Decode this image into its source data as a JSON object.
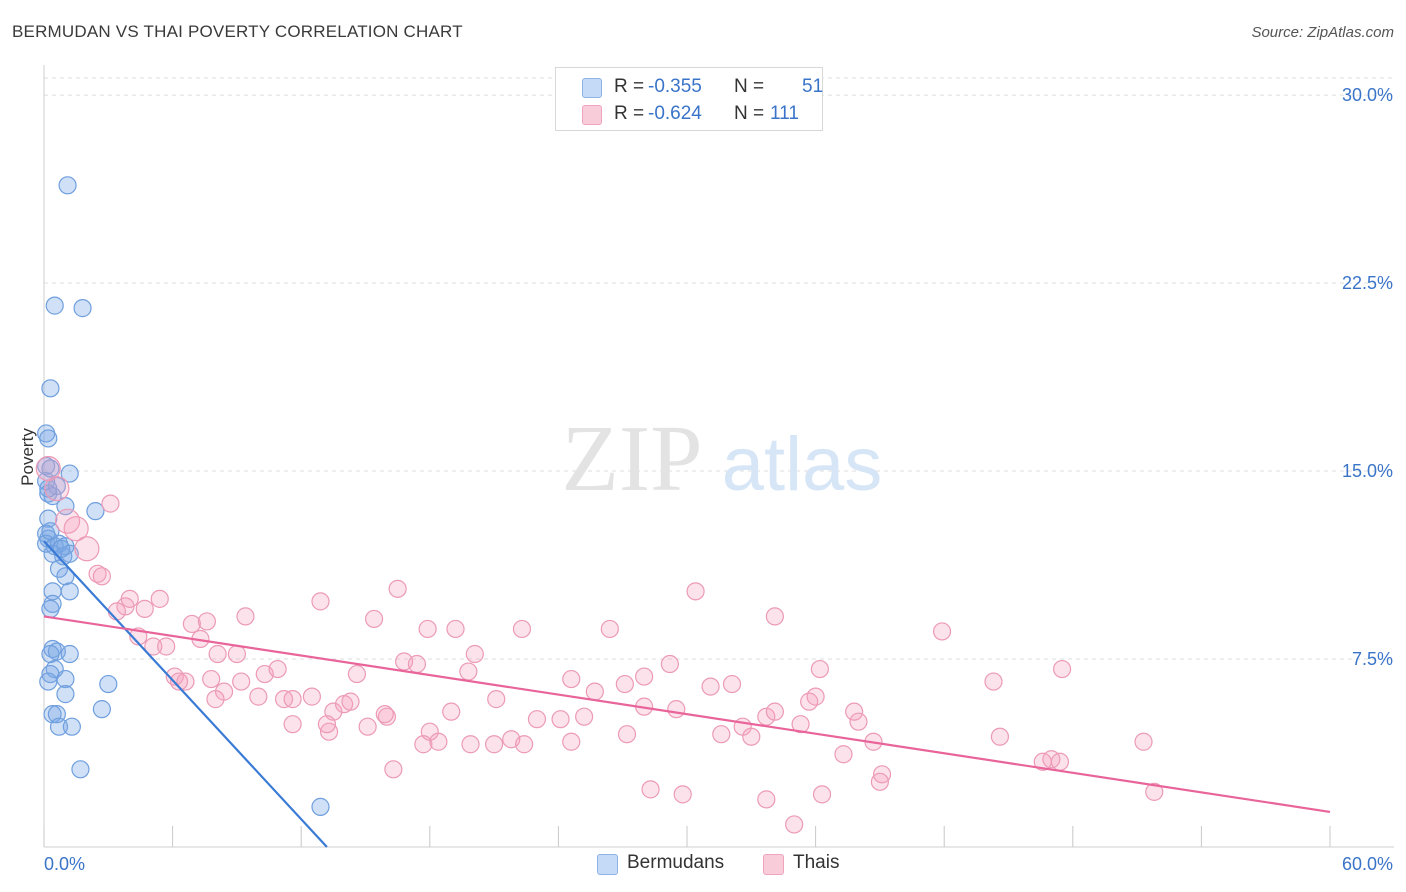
{
  "header": {
    "title": "BERMUDAN VS THAI POVERTY CORRELATION CHART",
    "source": "Source: ZipAtlas.com"
  },
  "watermark": {
    "zip": "ZIP",
    "atlas": "atlas"
  },
  "legend": {
    "items": [
      {
        "r_label": "R =",
        "r_value": "-0.355",
        "n_label": "N =",
        "n_value": "51",
        "color": "#aac8f0"
      },
      {
        "r_label": "R =",
        "r_value": "-0.624",
        "n_label": "N =",
        "n_value": "111",
        "color": "#f6b8cc"
      }
    ]
  },
  "bottom_legend": {
    "series1": "Bermudans",
    "series2": "Thais"
  },
  "chart_data": {
    "type": "scatter",
    "title": "BERMUDAN VS THAI POVERTY CORRELATION CHART",
    "xlabel": "",
    "ylabel": "Poverty",
    "xlim": [
      0,
      60
    ],
    "ylim": [
      0,
      31.2
    ],
    "x_tick_labels": [
      "0.0%",
      "60.0%"
    ],
    "y_ticks": [
      7.5,
      15,
      22.5,
      30
    ],
    "y_tick_labels": [
      "7.5%",
      "15.0%",
      "22.5%",
      "30.0%"
    ],
    "grid": "horizontal dashed",
    "legend_position": "top-center",
    "colors": {
      "bermudans": "#3a7bd5",
      "thais": "#e8649a"
    },
    "series": [
      {
        "name": "Bermudans",
        "color": "#3a7bd5",
        "trendline": {
          "x": [
            0,
            13.2
          ],
          "y": [
            12.2,
            0
          ]
        },
        "points": [
          [
            1.1,
            26.4
          ],
          [
            0.5,
            21.6
          ],
          [
            1.8,
            21.5
          ],
          [
            0.3,
            18.3
          ],
          [
            0.1,
            16.5
          ],
          [
            0.2,
            16.3
          ],
          [
            0.1,
            15.2
          ],
          [
            0.3,
            15.1
          ],
          [
            1.2,
            14.9
          ],
          [
            0.1,
            14.6
          ],
          [
            0.6,
            14.4
          ],
          [
            0.2,
            14.1
          ],
          [
            0.4,
            14.0
          ],
          [
            1.0,
            13.6
          ],
          [
            2.4,
            13.4
          ],
          [
            0.2,
            13.1
          ],
          [
            0.1,
            12.5
          ],
          [
            0.2,
            12.3
          ],
          [
            0.1,
            12.1
          ],
          [
            0.5,
            12.0
          ],
          [
            0.7,
            12.1
          ],
          [
            1.0,
            12.0
          ],
          [
            0.4,
            11.7
          ],
          [
            0.9,
            11.6
          ],
          [
            1.2,
            11.7
          ],
          [
            0.7,
            11.1
          ],
          [
            1.0,
            10.8
          ],
          [
            0.4,
            10.2
          ],
          [
            1.2,
            10.2
          ],
          [
            0.4,
            9.7
          ],
          [
            0.3,
            9.5
          ],
          [
            0.4,
            7.9
          ],
          [
            0.6,
            7.8
          ],
          [
            1.2,
            7.7
          ],
          [
            0.3,
            7.7
          ],
          [
            0.5,
            7.1
          ],
          [
            0.3,
            6.9
          ],
          [
            1.0,
            6.7
          ],
          [
            0.2,
            6.6
          ],
          [
            1.0,
            6.1
          ],
          [
            3.0,
            6.5
          ],
          [
            0.4,
            5.3
          ],
          [
            0.6,
            5.3
          ],
          [
            2.7,
            5.5
          ],
          [
            0.7,
            4.8
          ],
          [
            1.3,
            4.8
          ],
          [
            1.7,
            3.1
          ],
          [
            12.9,
            1.6
          ],
          [
            0.3,
            12.6
          ],
          [
            0.8,
            11.9
          ],
          [
            0.2,
            14.3
          ]
        ]
      },
      {
        "name": "Thais",
        "color": "#e8649a",
        "trendline": {
          "x": [
            0,
            60
          ],
          "y": [
            9.2,
            1.4
          ]
        },
        "points": [
          [
            0.2,
            15.1
          ],
          [
            0.6,
            14.3
          ],
          [
            1.1,
            13.0
          ],
          [
            1.5,
            12.7
          ],
          [
            2.0,
            11.9
          ],
          [
            3.1,
            13.7
          ],
          [
            2.5,
            10.9
          ],
          [
            2.7,
            10.8
          ],
          [
            3.8,
            9.6
          ],
          [
            4.0,
            9.9
          ],
          [
            3.4,
            9.4
          ],
          [
            4.7,
            9.5
          ],
          [
            5.4,
            9.9
          ],
          [
            6.9,
            8.9
          ],
          [
            7.6,
            9.0
          ],
          [
            9.4,
            9.2
          ],
          [
            12.9,
            9.8
          ],
          [
            15.4,
            9.1
          ],
          [
            16.5,
            10.3
          ],
          [
            17.9,
            8.7
          ],
          [
            19.2,
            8.7
          ],
          [
            22.3,
            8.7
          ],
          [
            26.4,
            8.7
          ],
          [
            30.4,
            10.2
          ],
          [
            34.1,
            9.2
          ],
          [
            41.9,
            8.6
          ],
          [
            4.4,
            8.4
          ],
          [
            5.1,
            8.0
          ],
          [
            5.7,
            8.0
          ],
          [
            7.3,
            8.3
          ],
          [
            8.1,
            7.7
          ],
          [
            9.0,
            7.7
          ],
          [
            6.1,
            6.8
          ],
          [
            6.6,
            6.6
          ],
          [
            7.8,
            6.7
          ],
          [
            9.2,
            6.6
          ],
          [
            10.3,
            6.9
          ],
          [
            10.9,
            7.1
          ],
          [
            14.6,
            6.9
          ],
          [
            16.8,
            7.4
          ],
          [
            17.4,
            7.3
          ],
          [
            19.8,
            7.0
          ],
          [
            20.1,
            7.7
          ],
          [
            24.6,
            6.7
          ],
          [
            27.1,
            6.5
          ],
          [
            28.0,
            6.8
          ],
          [
            29.2,
            7.3
          ],
          [
            31.1,
            6.4
          ],
          [
            36.2,
            7.1
          ],
          [
            44.3,
            6.6
          ],
          [
            47.5,
            7.1
          ],
          [
            8.4,
            6.2
          ],
          [
            10.0,
            6.0
          ],
          [
            11.2,
            5.9
          ],
          [
            11.6,
            5.9
          ],
          [
            12.5,
            6.0
          ],
          [
            13.5,
            5.4
          ],
          [
            14.0,
            5.7
          ],
          [
            14.3,
            5.8
          ],
          [
            16.0,
            5.2
          ],
          [
            19.0,
            5.4
          ],
          [
            21.1,
            5.9
          ],
          [
            25.7,
            6.2
          ],
          [
            28.0,
            5.6
          ],
          [
            29.5,
            5.5
          ],
          [
            33.7,
            5.2
          ],
          [
            34.1,
            5.4
          ],
          [
            36.0,
            6.0
          ],
          [
            11.6,
            4.9
          ],
          [
            13.3,
            4.6
          ],
          [
            15.1,
            4.8
          ],
          [
            17.7,
            4.1
          ],
          [
            18.0,
            4.6
          ],
          [
            19.9,
            4.1
          ],
          [
            21.0,
            4.1
          ],
          [
            22.4,
            4.1
          ],
          [
            24.1,
            5.1
          ],
          [
            23.0,
            5.1
          ],
          [
            25.2,
            5.2
          ],
          [
            27.2,
            4.5
          ],
          [
            31.6,
            4.5
          ],
          [
            32.6,
            4.8
          ],
          [
            33.0,
            4.4
          ],
          [
            35.3,
            4.9
          ],
          [
            38.0,
            5.0
          ],
          [
            38.7,
            4.2
          ],
          [
            44.6,
            4.4
          ],
          [
            51.3,
            4.2
          ],
          [
            37.3,
            3.7
          ],
          [
            39.1,
            2.9
          ],
          [
            47.0,
            3.5
          ],
          [
            47.4,
            3.4
          ],
          [
            16.3,
            3.1
          ],
          [
            28.3,
            2.3
          ],
          [
            29.8,
            2.1
          ],
          [
            33.7,
            1.9
          ],
          [
            35.0,
            0.9
          ],
          [
            36.3,
            2.1
          ],
          [
            39.0,
            2.6
          ],
          [
            51.8,
            2.2
          ],
          [
            24.6,
            4.2
          ],
          [
            13.2,
            4.9
          ],
          [
            21.8,
            4.3
          ],
          [
            8.0,
            5.9
          ],
          [
            15.9,
            5.3
          ],
          [
            6.3,
            6.6
          ],
          [
            18.4,
            4.2
          ],
          [
            32.1,
            6.5
          ],
          [
            35.7,
            5.8
          ],
          [
            37.8,
            5.4
          ],
          [
            46.6,
            3.4
          ]
        ]
      }
    ]
  }
}
